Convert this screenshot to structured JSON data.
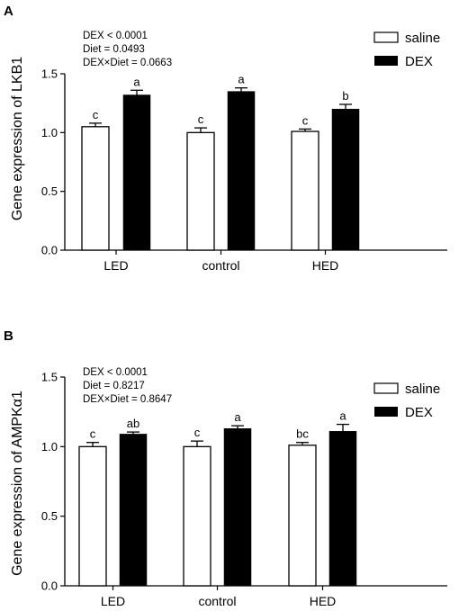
{
  "chart_data": [
    {
      "type": "bar",
      "panel": "A",
      "ylabel": "Gene expression of LKB1",
      "categories": [
        "LED",
        "control",
        "HED"
      ],
      "ylim": [
        0,
        1.5
      ],
      "yticks": [
        "0.0",
        "0.5",
        "1.0",
        "1.5"
      ],
      "stats": [
        "DEX < 0.0001",
        "Diet = 0.0493",
        "DEX×Diet = 0.0663"
      ],
      "series": [
        {
          "name": "saline",
          "values": [
            1.05,
            1.0,
            1.01
          ],
          "errors": [
            0.03,
            0.04,
            0.02
          ],
          "letters": [
            "c",
            "c",
            "c"
          ],
          "fill": "#ffffff"
        },
        {
          "name": "DEX",
          "values": [
            1.32,
            1.35,
            1.2
          ],
          "errors": [
            0.04,
            0.03,
            0.04
          ],
          "letters": [
            "a",
            "a",
            "b"
          ],
          "fill": "#000000"
        }
      ]
    },
    {
      "type": "bar",
      "panel": "B",
      "ylabel": "Gene expression of AMPKα1",
      "categories": [
        "LED",
        "control",
        "HED"
      ],
      "ylim": [
        0,
        1.5
      ],
      "yticks": [
        "0.0",
        "0.5",
        "1.0",
        "1.5"
      ],
      "stats": [
        "DEX < 0.0001",
        "Diet = 0.8217",
        "DEX×Diet = 0.8647"
      ],
      "series": [
        {
          "name": "saline",
          "values": [
            1.0,
            1.0,
            1.01
          ],
          "errors": [
            0.03,
            0.04,
            0.02
          ],
          "letters": [
            "c",
            "c",
            "bc"
          ],
          "fill": "#ffffff"
        },
        {
          "name": "DEX",
          "values": [
            1.09,
            1.13,
            1.11
          ],
          "errors": [
            0.015,
            0.02,
            0.05
          ],
          "letters": [
            "ab",
            "a",
            "a"
          ],
          "fill": "#000000"
        }
      ]
    }
  ]
}
